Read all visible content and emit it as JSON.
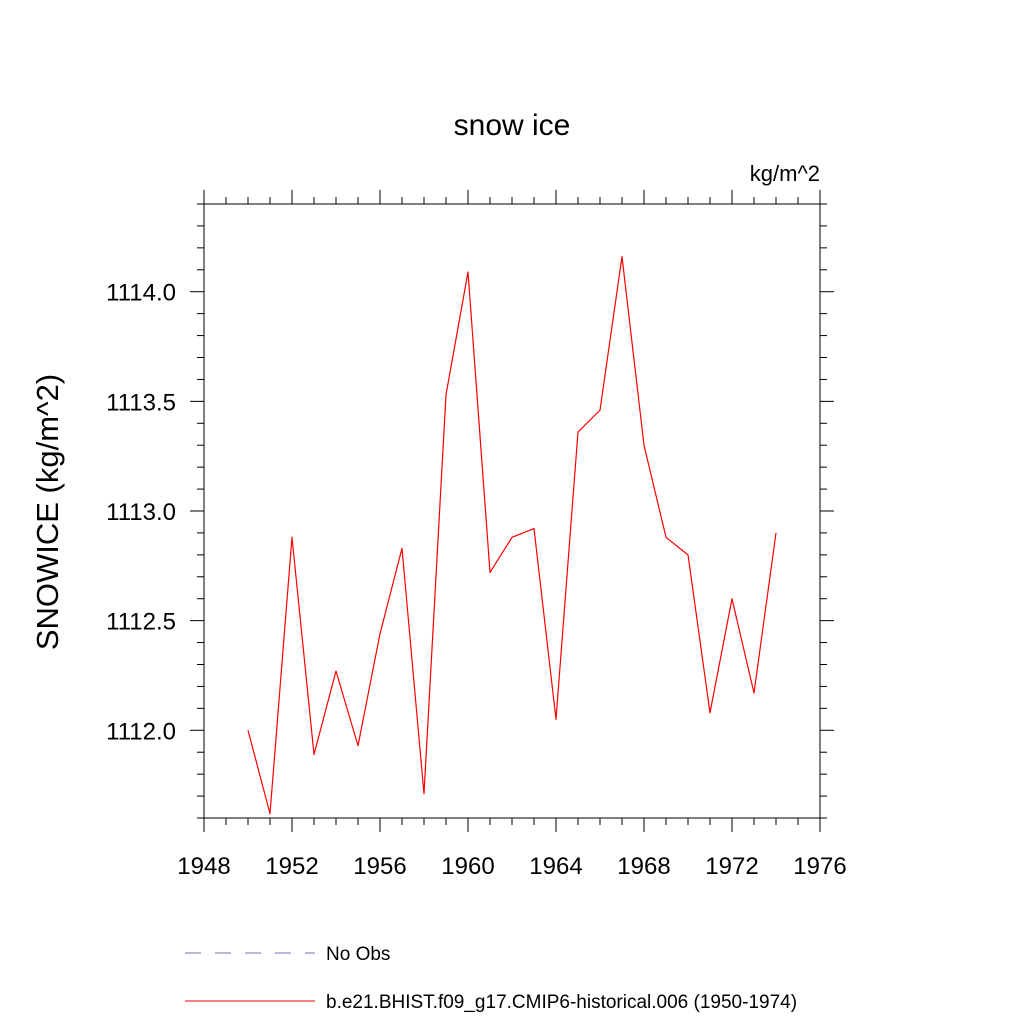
{
  "chart_data": {
    "type": "line",
    "title": "snow ice",
    "units_label": "kg/m^2",
    "ylabel": "SNOWICE  (kg/m^2)",
    "xlabel": "",
    "xlim": [
      1948,
      1976
    ],
    "ylim": [
      1111.6,
      1114.4
    ],
    "x_ticks": [
      1948,
      1952,
      1956,
      1960,
      1964,
      1968,
      1972,
      1976
    ],
    "y_ticks": [
      1112.0,
      1112.5,
      1113.0,
      1113.5,
      1114.0
    ],
    "x_minor_step": 1,
    "y_minor_step": 0.1,
    "grid": false,
    "legend_placement": "bottom",
    "series": [
      {
        "name": "b.e21.BHIST.f09_g17.CMIP6-historical.006 (1950-1974)",
        "color": "#ff0000",
        "style": "solid",
        "x": [
          1950,
          1951,
          1952,
          1953,
          1954,
          1955,
          1956,
          1957,
          1958,
          1959,
          1960,
          1961,
          1962,
          1963,
          1964,
          1965,
          1966,
          1967,
          1968,
          1969,
          1970,
          1971,
          1972,
          1973,
          1974
        ],
        "values": [
          1112.0,
          1111.62,
          1112.88,
          1111.89,
          1112.27,
          1111.93,
          1112.44,
          1112.83,
          1111.71,
          1113.53,
          1114.09,
          1112.72,
          1112.88,
          1112.92,
          1112.05,
          1113.36,
          1113.46,
          1114.16,
          1113.3,
          1112.88,
          1112.8,
          1112.08,
          1112.6,
          1112.17,
          1112.9
        ]
      }
    ],
    "legend": [
      {
        "label": "No Obs",
        "color": "#7070b8",
        "style": "dashed"
      },
      {
        "label": "b.e21.BHIST.f09_g17.CMIP6-historical.006 (1950-1974)",
        "color": "#ff0000",
        "style": "solid"
      }
    ]
  }
}
